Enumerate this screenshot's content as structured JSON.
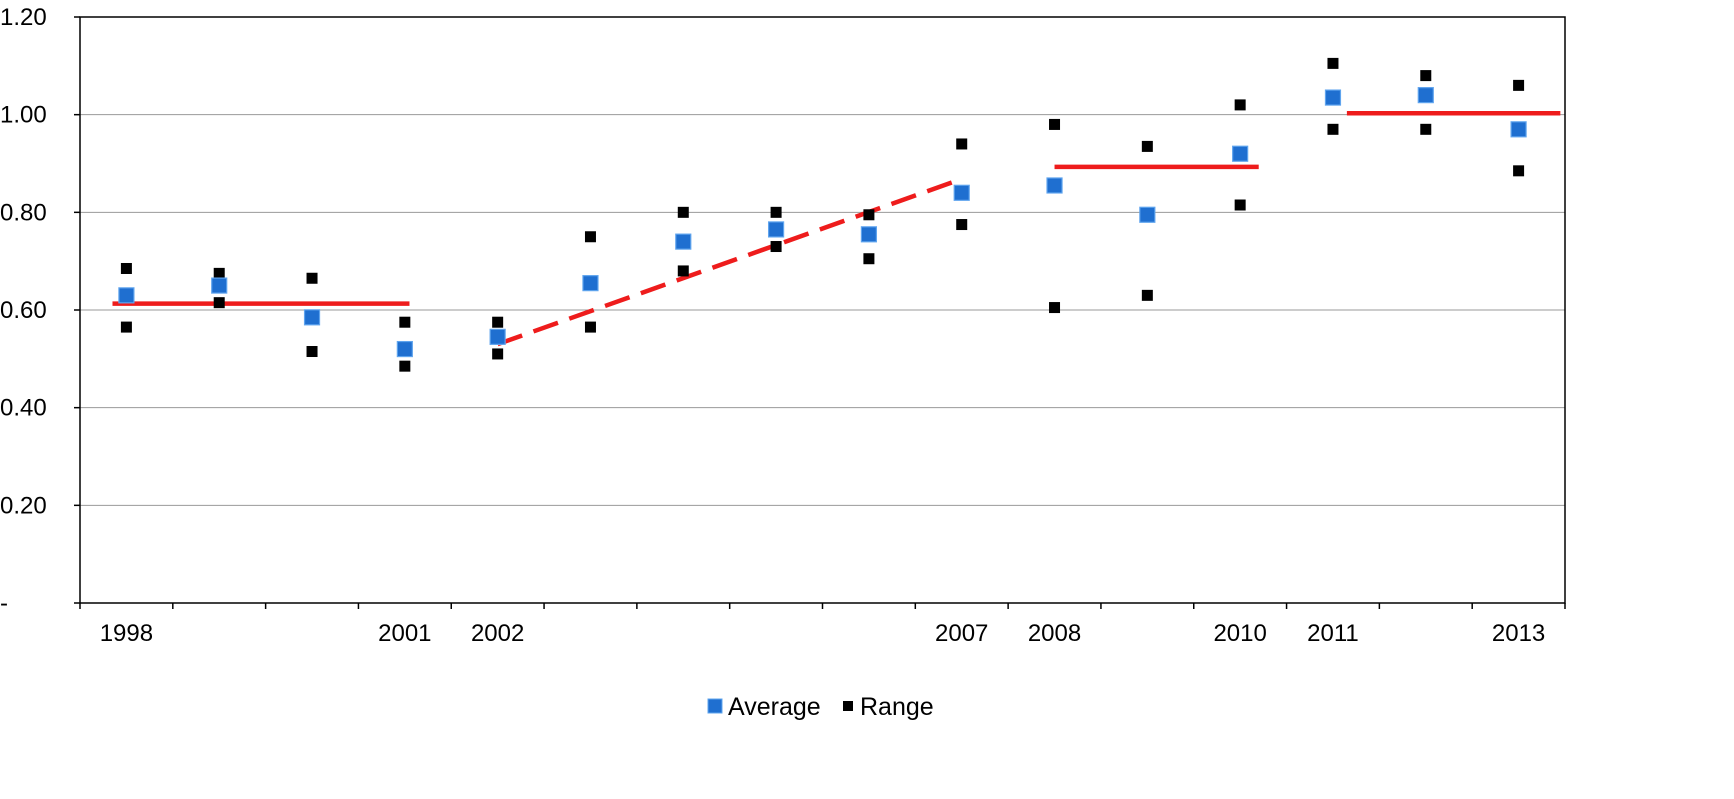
{
  "chart_data": {
    "type": "scatter",
    "title": "",
    "xlabel": "",
    "ylabel": "",
    "ylim": [
      0,
      1.2
    ],
    "y_ticks": [
      {
        "value": 0,
        "label": "-"
      },
      {
        "value": 0.2,
        "label": "0.20"
      },
      {
        "value": 0.4,
        "label": "0.40"
      },
      {
        "value": 0.6,
        "label": "0.60"
      },
      {
        "value": 0.8,
        "label": "0.80"
      },
      {
        "value": 1.0,
        "label": "1.00"
      },
      {
        "value": 1.2,
        "label": "1.20"
      }
    ],
    "categories": [
      "1998",
      "",
      "",
      "2001",
      "2002",
      "",
      "",
      "",
      "",
      "2007",
      "2008",
      "",
      "2010",
      "2011",
      "",
      "2013"
    ],
    "grid": "horizontal",
    "legend_position": "bottom-center",
    "series": [
      {
        "name": "Average",
        "color": "#1f6fd0",
        "marker": "square",
        "values": [
          0.63,
          0.65,
          0.585,
          0.52,
          0.545,
          0.655,
          0.74,
          0.765,
          0.755,
          0.84,
          0.855,
          0.795,
          0.92,
          1.035,
          1.04,
          0.97
        ]
      },
      {
        "name": "Range",
        "color": "#000000",
        "marker": "square",
        "points": [
          [
            0,
            0.685
          ],
          [
            0,
            0.565
          ],
          [
            1,
            0.675
          ],
          [
            1,
            0.615
          ],
          [
            2,
            0.665
          ],
          [
            2,
            0.515
          ],
          [
            3,
            0.575
          ],
          [
            3,
            0.485
          ],
          [
            4,
            0.575
          ],
          [
            4,
            0.51
          ],
          [
            5,
            0.75
          ],
          [
            5,
            0.565
          ],
          [
            6,
            0.8
          ],
          [
            6,
            0.68
          ],
          [
            7,
            0.8
          ],
          [
            7,
            0.73
          ],
          [
            8,
            0.795
          ],
          [
            8,
            0.705
          ],
          [
            9,
            0.94
          ],
          [
            9,
            0.775
          ],
          [
            10,
            0.98
          ],
          [
            10,
            0.605
          ],
          [
            11,
            0.935
          ],
          [
            11,
            0.63
          ],
          [
            12,
            1.02
          ],
          [
            12,
            0.815
          ],
          [
            13,
            1.105
          ],
          [
            13,
            0.97
          ],
          [
            14,
            1.08
          ],
          [
            14,
            0.97
          ],
          [
            15,
            1.06
          ],
          [
            15,
            0.885
          ]
        ]
      }
    ],
    "trend_lines": [
      {
        "style": "solid",
        "color": "#ee1c1c",
        "from": [
          -0.15,
          0.613
        ],
        "to": [
          3.05,
          0.613
        ]
      },
      {
        "style": "dashed",
        "color": "#ee1c1c",
        "from": [
          4.0,
          0.53
        ],
        "to": [
          8.95,
          0.865
        ]
      },
      {
        "style": "solid",
        "color": "#ee1c1c",
        "from": [
          10.0,
          0.893
        ],
        "to": [
          12.2,
          0.893
        ]
      },
      {
        "style": "solid",
        "color": "#ee1c1c",
        "from": [
          13.15,
          1.003
        ],
        "to": [
          15.45,
          1.003
        ]
      }
    ]
  }
}
